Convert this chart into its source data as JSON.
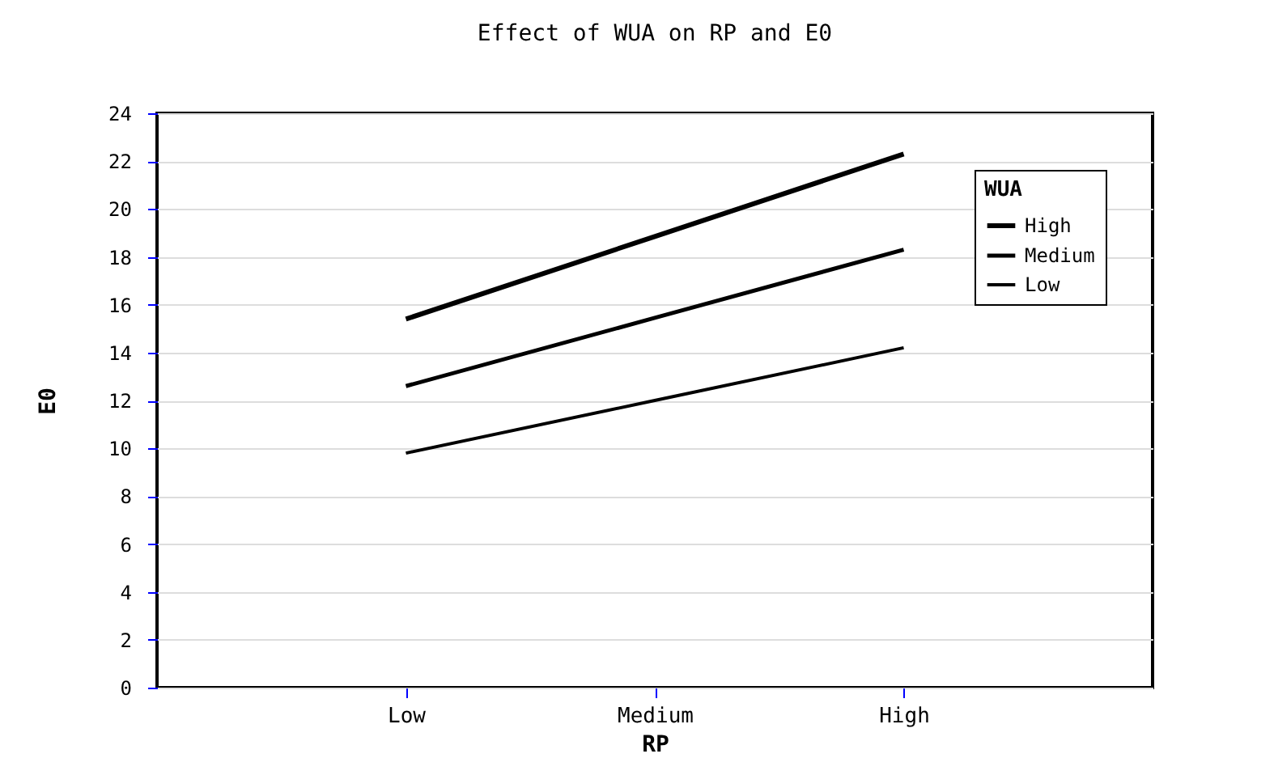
{
  "chart_data": {
    "type": "line",
    "title": "Effect of WUA on RP and E0",
    "xlabel": "RP",
    "ylabel": "E0",
    "legend_title": "WUA",
    "categories": [
      "Low",
      "Medium",
      "High"
    ],
    "series": [
      {
        "name": "High",
        "color": "#000000",
        "values": [
          15.4,
          18.85,
          22.3
        ]
      },
      {
        "name": "Medium",
        "color": "#000000",
        "values": [
          12.6,
          15.45,
          18.3
        ]
      },
      {
        "name": "Low",
        "color": "#000000",
        "values": [
          9.8,
          12.0,
          14.2
        ]
      }
    ],
    "ylim": [
      0,
      24
    ],
    "yticks": [
      0,
      2,
      4,
      6,
      8,
      10,
      12,
      14,
      16,
      18,
      20,
      22,
      24
    ],
    "grid": "y",
    "legend": "top right",
    "marker": "none",
    "line_style": "solid"
  }
}
